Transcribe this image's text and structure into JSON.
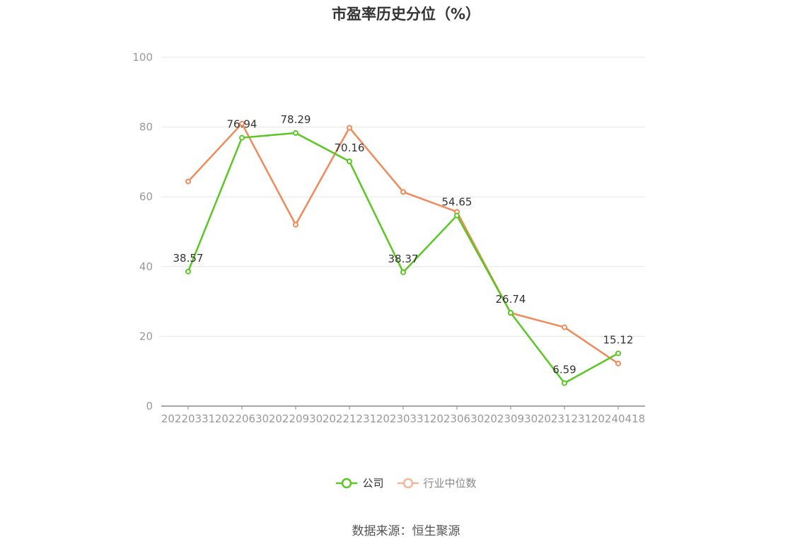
{
  "chart_data": {
    "type": "line",
    "title": "市盈率历史分位（%）",
    "categories": [
      "20220331",
      "20220630",
      "20220930",
      "20221231",
      "20230331",
      "20230630",
      "20230930",
      "20231231",
      "20240418"
    ],
    "ylim": [
      0,
      100
    ],
    "yticks": [
      0,
      20,
      40,
      60,
      80,
      100
    ],
    "grid": true,
    "legend_position": "bottom",
    "series": [
      {
        "name": "公司",
        "color": "#5ac724",
        "values": [
          38.57,
          76.94,
          78.29,
          70.16,
          38.37,
          54.65,
          26.74,
          6.59,
          15.12
        ],
        "labels": [
          "38.57",
          "76.94",
          "78.29",
          "70.16",
          "38.37",
          "54.65",
          "26.74",
          "6.59",
          "15.12"
        ]
      },
      {
        "name": "行业中位数",
        "color": "#f08a5a",
        "values": [
          64.4,
          81.0,
          52.0,
          79.8,
          61.4,
          55.7,
          26.7,
          22.6,
          12.2
        ]
      }
    ]
  },
  "legend": {
    "company": "公司",
    "industry": "行业中位数"
  },
  "source": "数据来源：恒生聚源"
}
